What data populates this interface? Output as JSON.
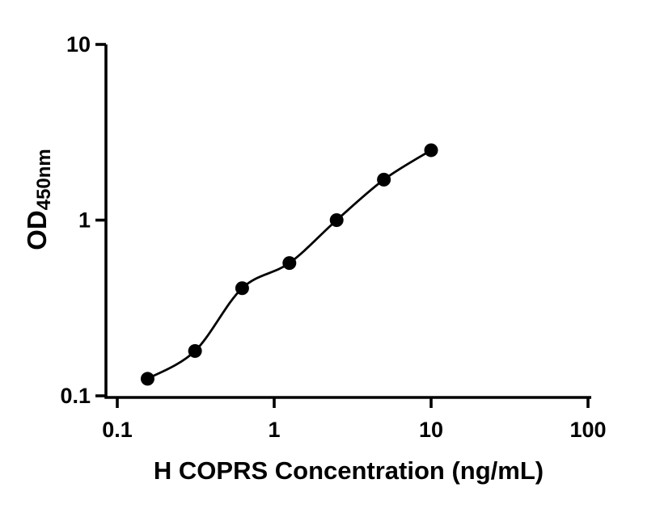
{
  "figure": {
    "background_color": "#ffffff",
    "axis_color": "#000000",
    "marker_color": "#000000",
    "line_color": "#000000"
  },
  "chart_data": {
    "type": "scatter",
    "xlabel": "H COPRS Concentration (ng/mL)",
    "ylabel": "OD",
    "ylabel_subscript": "450nm",
    "x_scale": "log",
    "y_scale": "log",
    "xlim": [
      0.1,
      100
    ],
    "ylim": [
      0.1,
      10
    ],
    "x_ticks": [
      0.1,
      1,
      10,
      100
    ],
    "x_tick_labels": [
      "0.1",
      "1",
      "10",
      "100"
    ],
    "y_ticks": [
      0.1,
      1,
      10
    ],
    "y_tick_labels": [
      "0.1",
      "1",
      "10"
    ],
    "grid": false,
    "legend": null,
    "series": [
      {
        "x": [
          0.156,
          0.313,
          0.625,
          1.25,
          2.5,
          5,
          10
        ],
        "y": [
          0.125,
          0.18,
          0.41,
          0.57,
          1.0,
          1.7,
          2.5
        ],
        "marker": "circle",
        "marker_color": "#000000",
        "line_color": "#000000",
        "fit": "smooth-curve"
      }
    ]
  }
}
